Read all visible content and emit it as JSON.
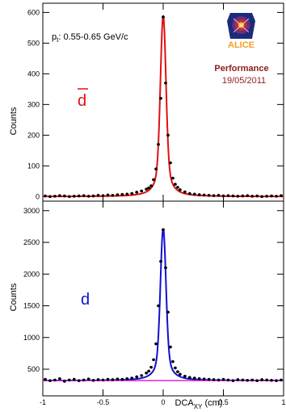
{
  "figure": {
    "annotation_pt_main": "p",
    "annotation_pt_sub": "t",
    "annotation_pt_rest": ": 0.55-0.65 GeV/c",
    "performance_label": "Performance",
    "date_label": "19/05/2011",
    "logo_text": "ALICE",
    "xlabel_main": "DCA",
    "xlabel_sub": "XY",
    "xlabel_rest": " (cm)"
  },
  "chart_data": [
    {
      "type": "scatter",
      "panel": "top",
      "particle_label": "d̄",
      "label_color": "#e01010",
      "fit_color": "#e01010",
      "marker_color": "#000000",
      "xlabel": "DCA_XY (cm)",
      "ylabel": "Counts",
      "xlim": [
        -1,
        1
      ],
      "ylim": [
        -15,
        630
      ],
      "yticks": [
        0,
        100,
        200,
        300,
        400,
        500,
        600
      ],
      "xticks": [
        -1,
        -0.5,
        0,
        0.5,
        1
      ],
      "x": [
        -0.98,
        -0.94,
        -0.9,
        -0.86,
        -0.82,
        -0.78,
        -0.74,
        -0.7,
        -0.66,
        -0.62,
        -0.58,
        -0.54,
        -0.5,
        -0.46,
        -0.42,
        -0.38,
        -0.34,
        -0.3,
        -0.26,
        -0.22,
        -0.18,
        -0.14,
        -0.12,
        -0.1,
        -0.08,
        -0.06,
        -0.04,
        -0.02,
        0.0,
        0.02,
        0.04,
        0.06,
        0.08,
        0.1,
        0.12,
        0.14,
        0.18,
        0.22,
        0.26,
        0.3,
        0.34,
        0.38,
        0.42,
        0.46,
        0.5,
        0.54,
        0.58,
        0.62,
        0.66,
        0.7,
        0.74,
        0.78,
        0.82,
        0.86,
        0.9,
        0.94,
        0.98
      ],
      "y": [
        2,
        0,
        1,
        3,
        2,
        0,
        1,
        2,
        3,
        1,
        2,
        4,
        3,
        5,
        4,
        6,
        7,
        8,
        10,
        14,
        18,
        24,
        28,
        35,
        55,
        90,
        170,
        320,
        585,
        370,
        200,
        110,
        60,
        40,
        30,
        22,
        15,
        10,
        8,
        6,
        5,
        4,
        3,
        4,
        2,
        3,
        2,
        1,
        2,
        3,
        1,
        2,
        0,
        1,
        2,
        1,
        3
      ],
      "fit": {
        "model": "peak",
        "peak": 590,
        "center": 0.0,
        "background": 0
      }
    },
    {
      "type": "scatter",
      "panel": "bottom",
      "particle_label": "d",
      "label_color": "#1010d0",
      "fit_color": "#1010d0",
      "background_fit_color": "#e020e0",
      "marker_color": "#000000",
      "xlabel": "DCA_XY (cm)",
      "ylabel": "Counts",
      "xlim": [
        -1,
        1
      ],
      "ylim": [
        80,
        3150
      ],
      "yticks": [
        500,
        1000,
        1500,
        2000,
        2500,
        3000
      ],
      "xticks": [
        -1,
        -0.5,
        0,
        0.5,
        1
      ],
      "x": [
        -0.98,
        -0.94,
        -0.9,
        -0.86,
        -0.82,
        -0.78,
        -0.74,
        -0.7,
        -0.66,
        -0.62,
        -0.58,
        -0.54,
        -0.5,
        -0.46,
        -0.42,
        -0.38,
        -0.34,
        -0.3,
        -0.26,
        -0.22,
        -0.18,
        -0.14,
        -0.12,
        -0.1,
        -0.08,
        -0.06,
        -0.04,
        -0.02,
        0.0,
        0.02,
        0.04,
        0.06,
        0.08,
        0.1,
        0.12,
        0.14,
        0.18,
        0.22,
        0.26,
        0.3,
        0.34,
        0.38,
        0.42,
        0.46,
        0.5,
        0.54,
        0.58,
        0.62,
        0.66,
        0.7,
        0.74,
        0.78,
        0.82,
        0.86,
        0.9,
        0.94,
        0.98
      ],
      "y": [
        340,
        320,
        330,
        350,
        310,
        330,
        340,
        320,
        330,
        345,
        325,
        335,
        330,
        340,
        335,
        345,
        340,
        350,
        360,
        380,
        400,
        440,
        470,
        530,
        650,
        900,
        1500,
        2200,
        2700,
        2100,
        1400,
        850,
        620,
        520,
        460,
        420,
        390,
        370,
        360,
        350,
        345,
        340,
        335,
        330,
        340,
        330,
        320,
        335,
        330,
        325,
        330,
        320,
        335,
        330,
        325,
        320,
        330
      ],
      "fit": {
        "model": "peak",
        "peak": 2720,
        "center": 0.0,
        "background": 320
      },
      "background_fit": {
        "model": "constant",
        "level": 320
      }
    }
  ]
}
